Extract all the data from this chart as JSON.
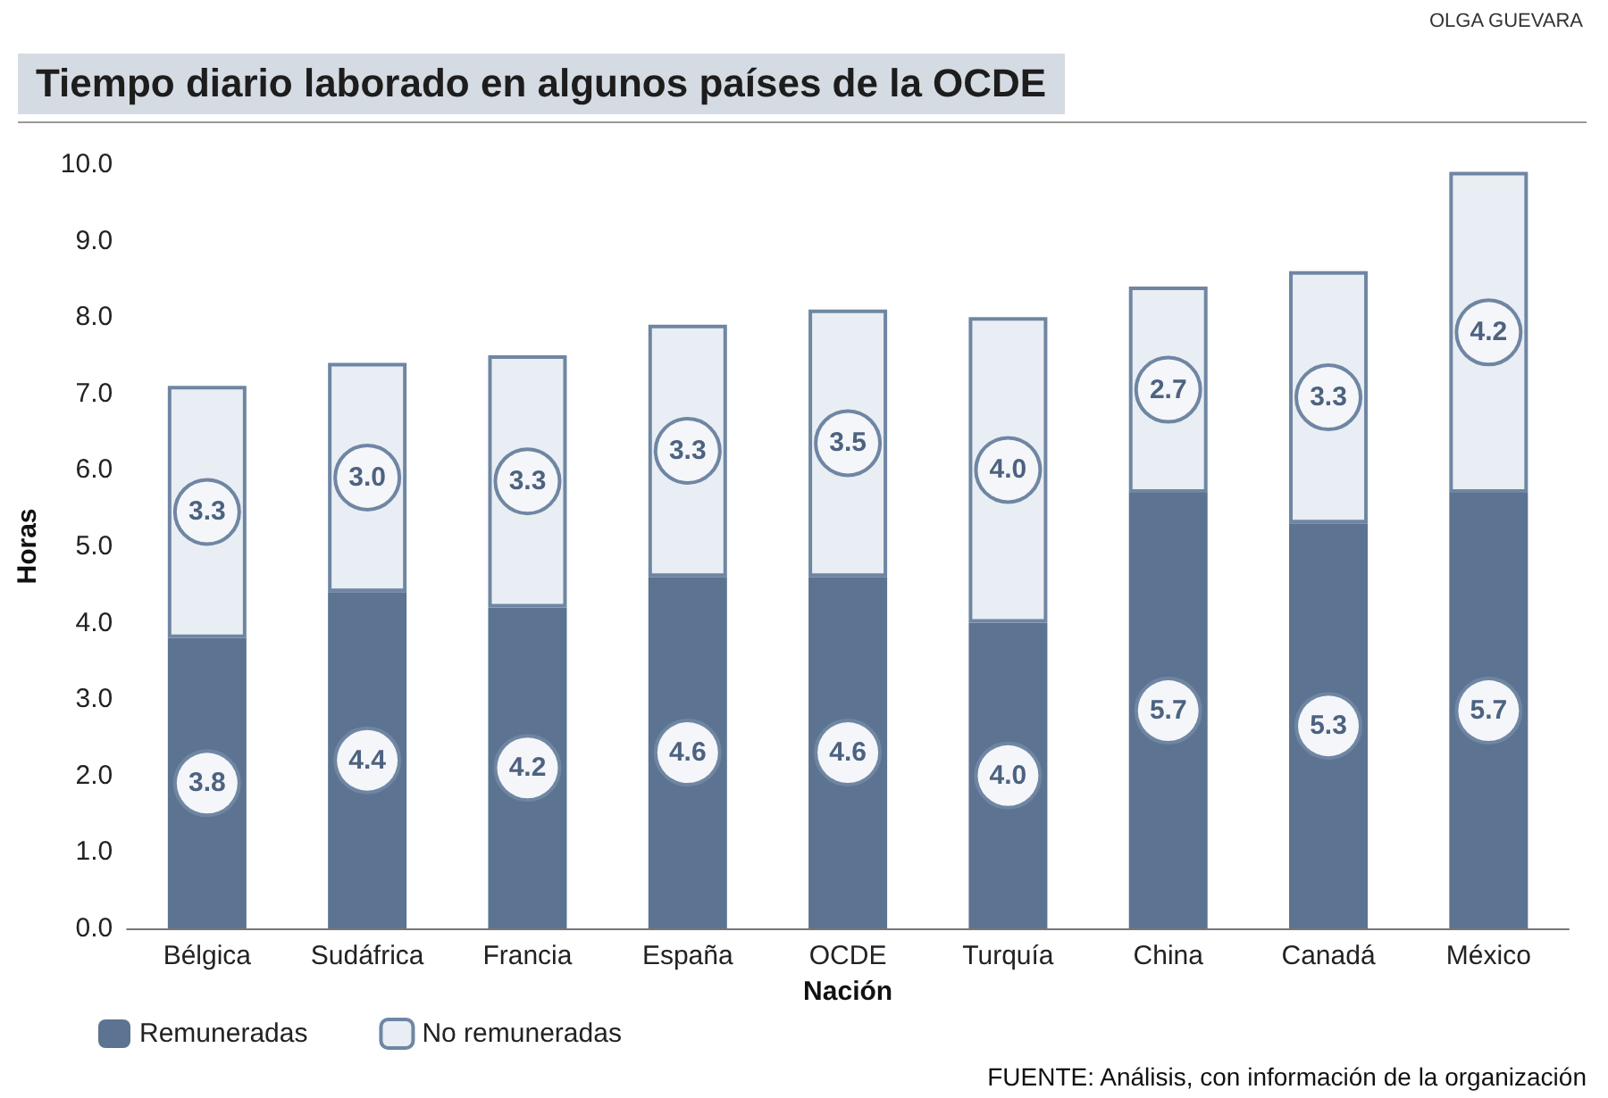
{
  "chart_data": {
    "type": "bar",
    "stacked": true,
    "title": "Tiempo diario laborado en algunos países de la OCDE",
    "xlabel": "Nación",
    "ylabel": "Horas",
    "categories": [
      "Bélgica",
      "Sudáfrica",
      "Francia",
      "España",
      "OCDE",
      "Turquía",
      "China",
      "Canadá",
      "México"
    ],
    "series": [
      {
        "name": "Remuneradas",
        "color": "#5c7391",
        "values": [
          3.8,
          4.4,
          4.2,
          4.6,
          4.6,
          4.0,
          5.7,
          5.3,
          5.7
        ],
        "value_labels": [
          "3.8",
          "4.4",
          "4.2",
          "4.6",
          "4.6",
          "4.0",
          "5.7",
          "5.3",
          "5.7"
        ]
      },
      {
        "name": "No remuneradas",
        "color": "#e9eef4",
        "values": [
          3.3,
          3.0,
          3.3,
          3.3,
          3.5,
          4.0,
          2.7,
          3.3,
          4.2
        ],
        "value_labels": [
          "3.3",
          "3.0",
          "3.3",
          "3.3",
          "3.5",
          "4.0",
          "2.7",
          "3.3",
          "4.2"
        ]
      }
    ],
    "ylim": [
      0,
      10
    ],
    "yticks": [
      {
        "value": 0,
        "label": "0.0"
      },
      {
        "value": 1,
        "label": "1.0"
      },
      {
        "value": 2,
        "label": "2.0"
      },
      {
        "value": 3,
        "label": "3.0"
      },
      {
        "value": 4,
        "label": "4.0"
      },
      {
        "value": 5,
        "label": "5.0"
      },
      {
        "value": 6,
        "label": "6.0"
      },
      {
        "value": 7,
        "label": "7.0"
      },
      {
        "value": 8,
        "label": "8.0"
      },
      {
        "value": 9,
        "label": "9.0"
      },
      {
        "value": 10,
        "label": "10.0"
      }
    ],
    "grid": false,
    "legend": "bottom left",
    "annotations": [
      "OLGA GUEVARA",
      "FUENTE: Análisis, con información de la organización"
    ]
  }
}
